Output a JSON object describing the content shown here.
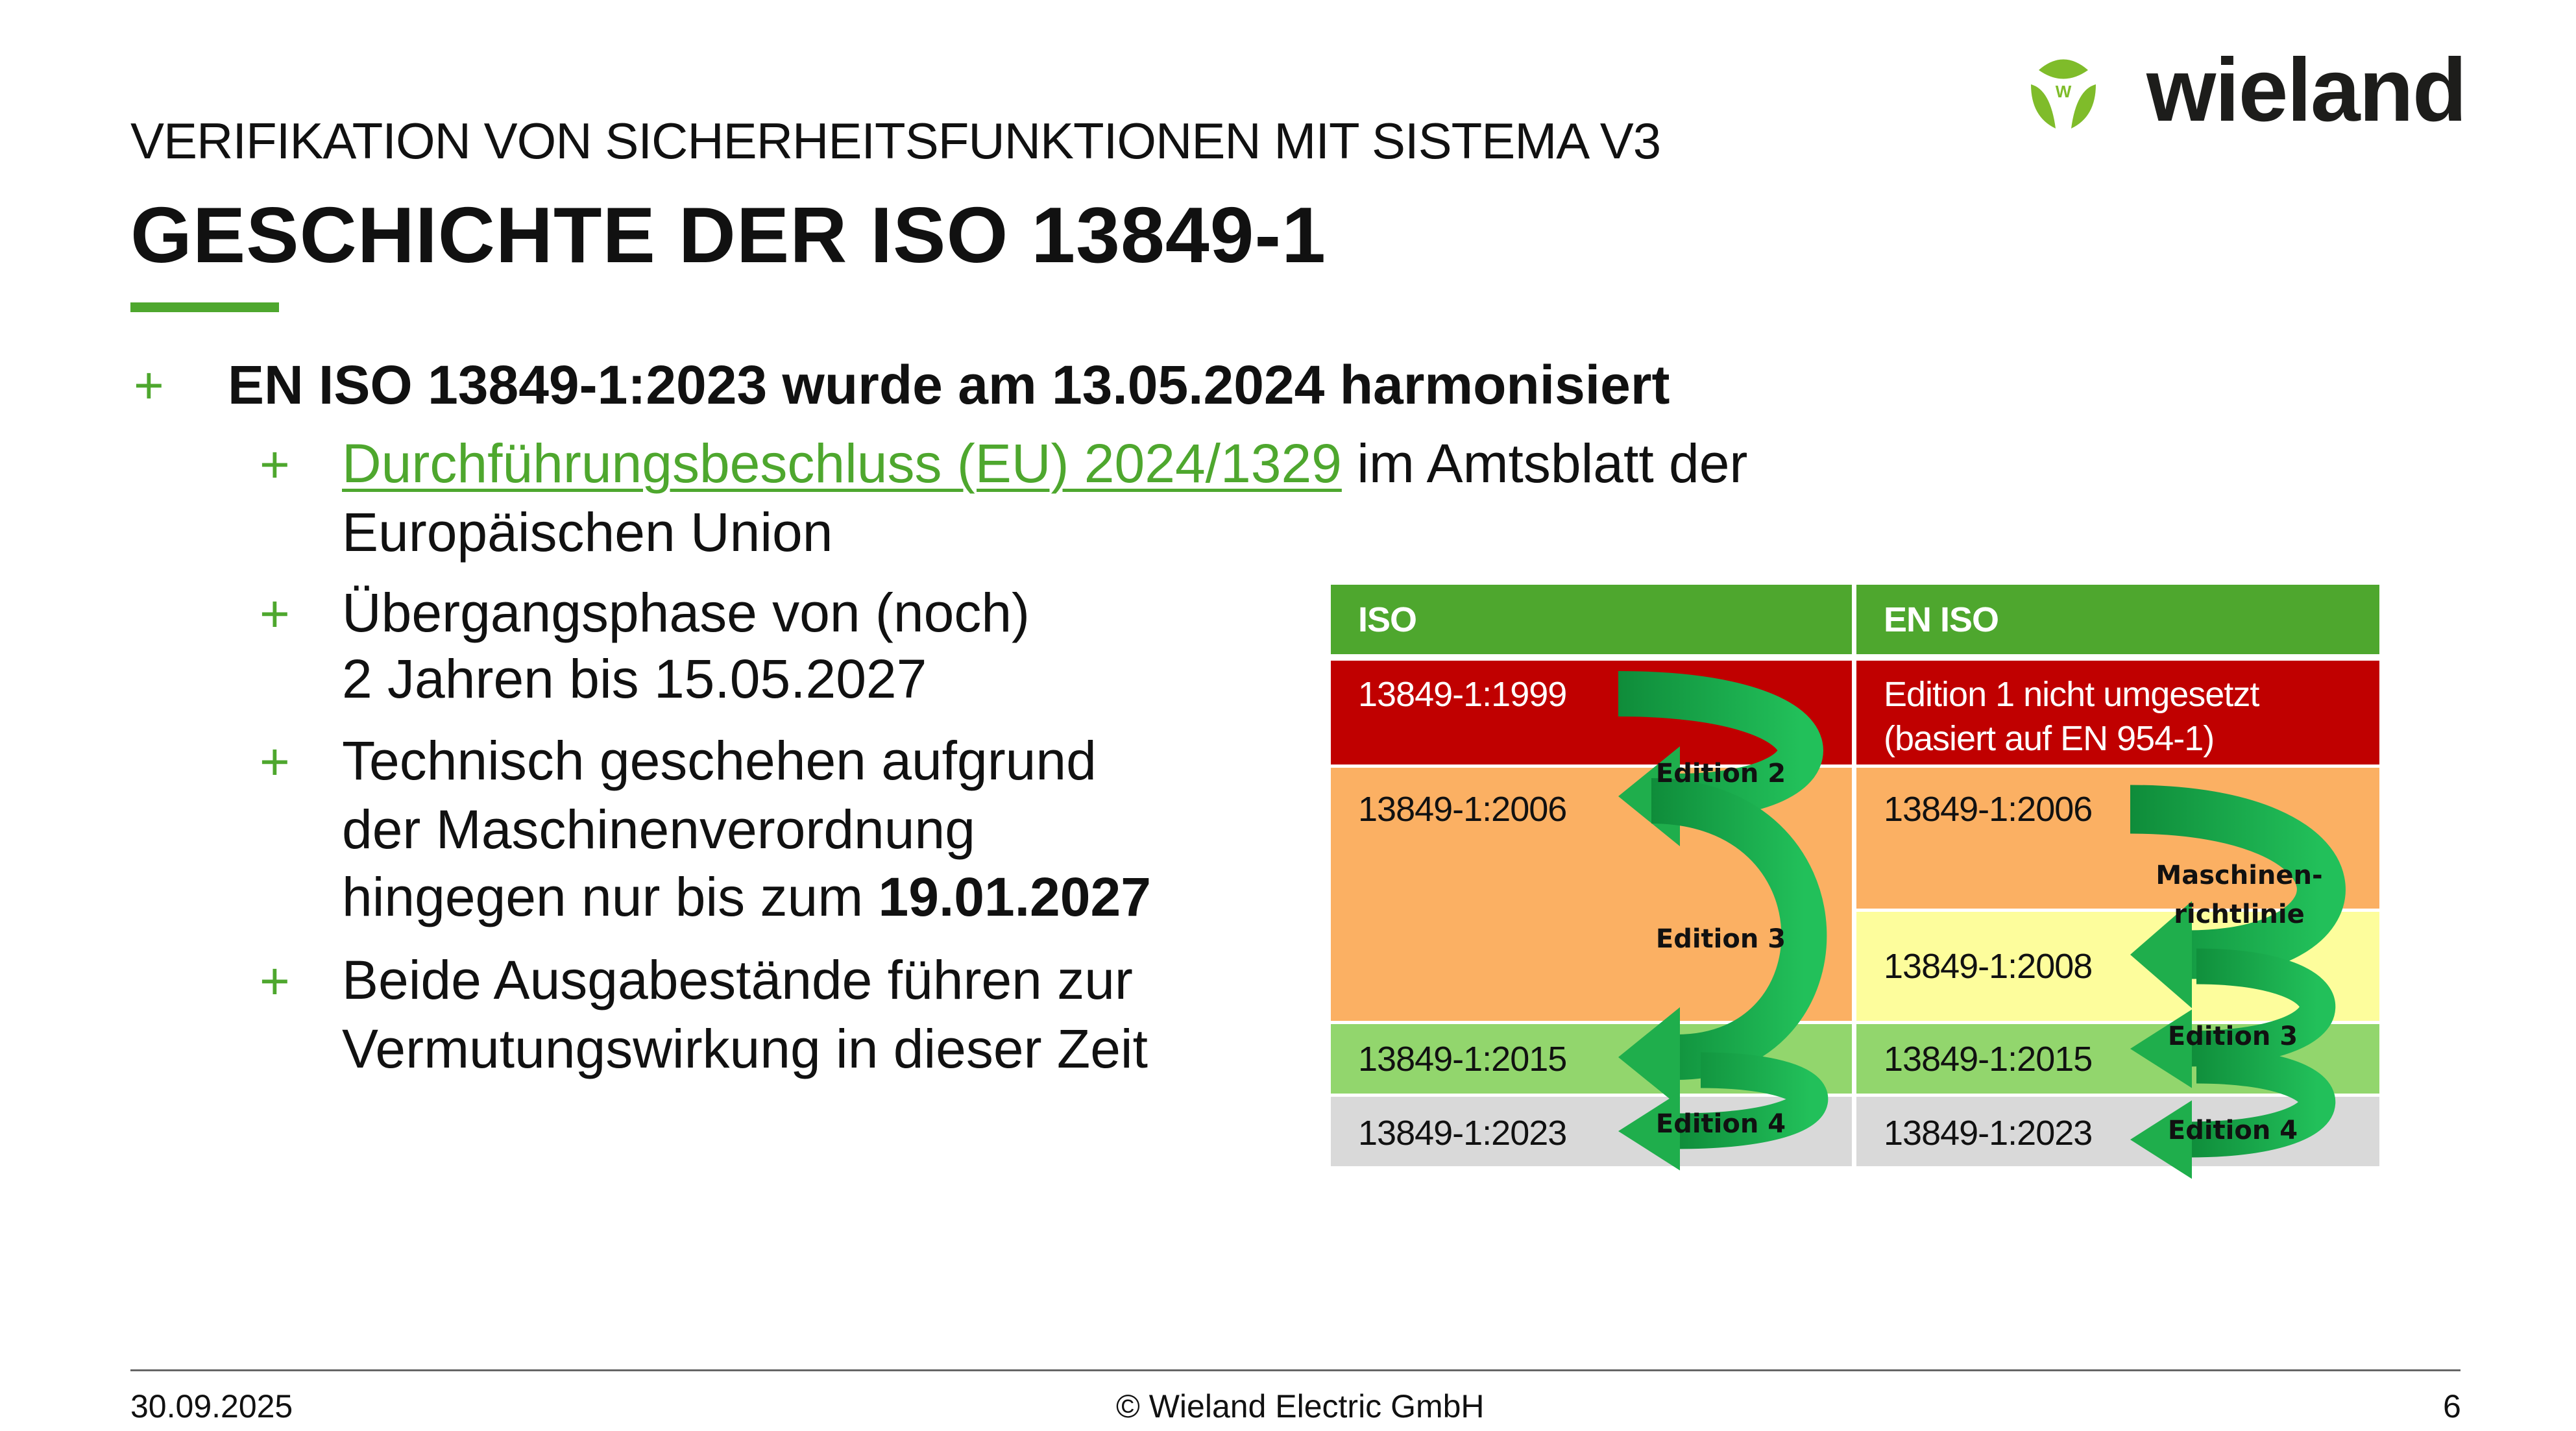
{
  "header": {
    "subtitle": "VERIFIKATION VON SICHERHEITSFUNKTIONEN MIT SISTEMA V3",
    "title": "GESCHICHTE DER ISO 13849-1",
    "logo_text": "wieland",
    "logo_mark_letter": "W"
  },
  "bullets": {
    "main": "EN ISO 13849-1:2023 wurde am 13.05.2024 harmonisiert",
    "sub1_link": "Durchführungsbeschluss (EU) 2024/1329",
    "sub1_rest": " im Amtsblatt der",
    "sub1_line2": "Europäischen Union",
    "sub2_line1": "Übergangsphase von (noch)",
    "sub2_line2": "2 Jahren bis 15.05.2027",
    "sub3_line1": "Technisch geschehen aufgrund",
    "sub3_line2": "der Maschinenverordnung",
    "sub3_line3_prefix": "hingegen nur bis zum ",
    "sub3_line3_bold": "19.01.2027",
    "sub4_line1": "Beide Ausgabestände führen zur",
    "sub4_line2": "Vermutungswirkung in dieser Zeit",
    "plus": "+"
  },
  "table": {
    "headers": [
      "ISO",
      "EN ISO"
    ],
    "iso": [
      "13849-1:1999",
      "13849-1:2006",
      "13849-1:2015",
      "13849-1:2023"
    ],
    "en_iso": [
      "Edition 1 nicht umgesetzt",
      "(basiert auf EN 954-1)",
      "13849-1:2006",
      "13849-1:2008",
      "13849-1:2015",
      "13849-1:2023"
    ],
    "arrow_labels_iso": [
      "Edition 2",
      "Edition 3",
      "Edition 4"
    ],
    "arrow_labels_en": [
      "Maschinen-",
      "richtlinie",
      "Edition 3",
      "Edition 4"
    ],
    "colors": {
      "header": "#4ea72e",
      "red": "#c00000",
      "orange": "#fbb063",
      "yellow": "#fdfd9c",
      "light_green": "#92d66d",
      "gray": "#d9d9d9",
      "arrow": "#1fae4c"
    }
  },
  "footer": {
    "date": "30.09.2025",
    "copyright": "© Wieland Electric GmbH",
    "page": "6"
  }
}
